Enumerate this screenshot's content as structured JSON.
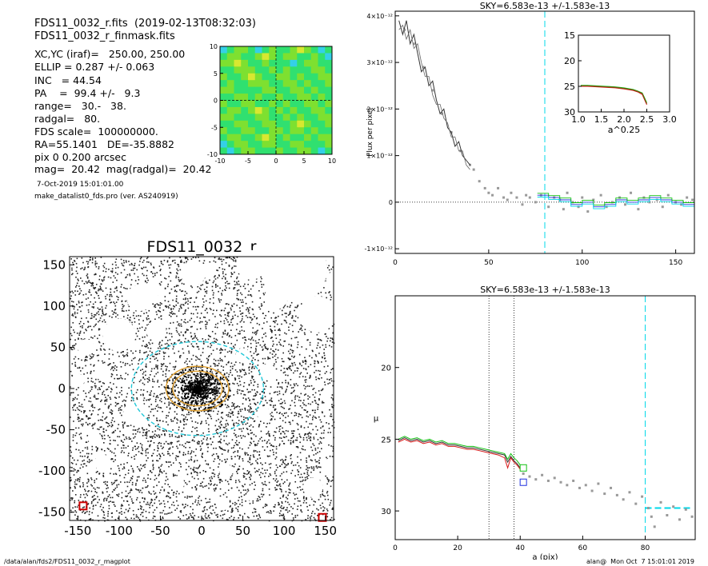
{
  "header": {
    "file_line": "FDS11_0032_r.fits  (2019-02-13T08:32:03)",
    "mask_line": "FDS11_0032_r_finmask.fits"
  },
  "params": [
    "XC,YC (iraf)=   250.00, 250.00",
    "ELLIP = 0.287 +/- 0.063",
    "INC   = 44.54",
    "PA    =  99.4 +/-   9.3",
    "range=   30.-   38.",
    "radgal=   80.",
    "FDS scale=  100000000.",
    "RA=55.1401   DE=-35.8882",
    "pix 0 0.200 arcsec",
    "mag=  20.42  mag(radgal)=  20.42"
  ],
  "date_line": " 7-Oct-2019 15:01:01.00",
  "program_line": "make_datalist0_fds.pro (ver. AS240919)",
  "footer": {
    "path": "/data/alan/fds2/FDS11_0032_r_magplot",
    "user_stamp": "alan@  Mon Oct  7 15:01:01 2019"
  },
  "colors": {
    "sky_line": "#00d8e8",
    "profile_dark": "#333333",
    "profile_red": "#d81818",
    "profile_green": "#10c010",
    "profile_blue": "#2030e0",
    "inset_brown": "#7a4a10",
    "points": "#999999"
  },
  "chart_data": [
    {
      "type": "heatmap",
      "id": "contour_map",
      "xlim": [
        -10,
        10
      ],
      "ylim": [
        -10,
        10
      ],
      "xticks": [
        -10,
        -5,
        0,
        5,
        10
      ],
      "yticks": [
        -10,
        -5,
        0,
        5,
        10
      ],
      "xtick_labels": [
        "-10",
        "-5",
        "0",
        "5",
        "10"
      ],
      "ytick_labels": [
        "-10",
        "-5",
        "0",
        "5",
        "10"
      ],
      "palette": [
        "#1d3fc8",
        "#2f8cf0",
        "#34d0e8",
        "#30e070",
        "#7ee030",
        "#d8e830"
      ],
      "cells": [
        [
          2,
          3,
          4,
          4,
          3,
          2,
          3,
          4,
          3,
          3,
          4,
          5,
          4,
          3,
          2,
          3
        ],
        [
          3,
          4,
          4,
          3,
          3,
          4,
          5,
          4,
          3,
          4,
          4,
          3,
          3,
          4,
          3,
          2
        ],
        [
          4,
          4,
          5,
          4,
          3,
          3,
          4,
          3,
          3,
          3,
          2,
          3,
          4,
          4,
          3,
          3
        ],
        [
          3,
          3,
          4,
          4,
          4,
          3,
          3,
          4,
          3,
          4,
          3,
          3,
          3,
          4,
          4,
          3
        ],
        [
          4,
          3,
          3,
          4,
          5,
          4,
          3,
          3,
          4,
          4,
          3,
          4,
          3,
          3,
          4,
          4
        ],
        [
          3,
          4,
          3,
          3,
          4,
          4,
          4,
          3,
          3,
          4,
          4,
          3,
          4,
          3,
          3,
          4
        ],
        [
          4,
          4,
          3,
          3,
          3,
          3,
          4,
          4,
          3,
          3,
          4,
          4,
          3,
          4,
          3,
          3
        ],
        [
          3,
          3,
          4,
          4,
          3,
          4,
          3,
          3,
          4,
          3,
          3,
          4,
          4,
          3,
          4,
          3
        ],
        [
          4,
          3,
          3,
          4,
          4,
          3,
          3,
          4,
          3,
          4,
          3,
          3,
          4,
          4,
          3,
          4
        ],
        [
          3,
          4,
          4,
          3,
          4,
          5,
          4,
          3,
          4,
          3,
          4,
          3,
          3,
          4,
          4,
          3
        ],
        [
          4,
          4,
          3,
          3,
          3,
          4,
          4,
          3,
          3,
          4,
          3,
          4,
          3,
          3,
          4,
          4
        ],
        [
          3,
          3,
          4,
          4,
          3,
          3,
          4,
          4,
          3,
          3,
          4,
          5,
          4,
          3,
          3,
          4
        ],
        [
          4,
          3,
          3,
          4,
          4,
          3,
          3,
          4,
          4,
          3,
          4,
          4,
          3,
          4,
          3,
          3
        ],
        [
          3,
          4,
          4,
          3,
          3,
          4,
          5,
          4,
          3,
          4,
          3,
          3,
          4,
          3,
          4,
          4
        ],
        [
          2,
          3,
          4,
          4,
          3,
          3,
          4,
          4,
          3,
          3,
          4,
          4,
          3,
          3,
          3,
          4
        ],
        [
          3,
          2,
          3,
          4,
          4,
          3,
          3,
          3,
          4,
          3,
          3,
          4,
          4,
          3,
          2,
          3
        ]
      ]
    },
    {
      "type": "scatter",
      "id": "galaxy_image",
      "title": "FDS11_0032_r",
      "xlim": [
        -160,
        160
      ],
      "ylim": [
        -160,
        160
      ],
      "xticks": [
        -150,
        -100,
        -50,
        0,
        50,
        100,
        150
      ],
      "yticks": [
        -150,
        -100,
        -50,
        0,
        50,
        100,
        150
      ],
      "xtick_labels": [
        "-150",
        "-100",
        "-50",
        "0",
        "50",
        "100",
        "150"
      ],
      "ytick_labels": [
        "-150",
        "-100",
        "-50",
        "0",
        "50",
        "100",
        "150"
      ],
      "ellipses": [
        {
          "cx": -5,
          "cy": 0,
          "a": 80,
          "b": 57,
          "pa": 99.4,
          "color": "cyan",
          "dashed": true
        },
        {
          "cx": -5,
          "cy": 0,
          "a": 38,
          "b": 27,
          "pa": 99.4,
          "color": "orange"
        },
        {
          "cx": -5,
          "cy": 0,
          "a": 30,
          "b": 21,
          "pa": 99.4,
          "color": "orange"
        }
      ],
      "masks": [
        {
          "x": -100,
          "y": 65,
          "r": 20
        },
        {
          "x": -75,
          "y": 110,
          "r": 16
        },
        {
          "x": -55,
          "y": 70,
          "r": 12
        },
        {
          "x": -120,
          "y": 20,
          "r": 10
        },
        {
          "x": -140,
          "y": 50,
          "r": 10
        },
        {
          "x": -80,
          "y": -30,
          "r": 15
        },
        {
          "x": -120,
          "y": -90,
          "r": 10
        },
        {
          "x": -150,
          "y": 10,
          "r": 8
        },
        {
          "x": -10,
          "y": 140,
          "r": 15
        },
        {
          "x": 50,
          "y": 40,
          "r": 9
        },
        {
          "x": 80,
          "y": 20,
          "r": 10
        },
        {
          "x": 112,
          "y": 145,
          "r": 40
        },
        {
          "x": 140,
          "y": 90,
          "r": 22
        },
        {
          "x": 90,
          "y": 110,
          "r": 14
        },
        {
          "x": 60,
          "y": 150,
          "r": 18
        },
        {
          "x": 160,
          "y": 40,
          "r": 10
        },
        {
          "x": 150,
          "y": -10,
          "r": 6
        },
        {
          "x": 135,
          "y": -120,
          "r": 12
        },
        {
          "x": 155,
          "y": -95,
          "r": 10
        },
        {
          "x": 75,
          "y": -30,
          "r": 8
        },
        {
          "x": 30,
          "y": -100,
          "r": 8
        },
        {
          "x": 25,
          "y": -140,
          "r": 8
        },
        {
          "x": -30,
          "y": -115,
          "r": 9
        },
        {
          "x": -130,
          "y": -60,
          "r": 8
        },
        {
          "x": 100,
          "y": -75,
          "r": 7
        },
        {
          "x": 60,
          "y": -130,
          "r": 6
        },
        {
          "x": -60,
          "y": 120,
          "r": 10
        },
        {
          "x": 165,
          "y": 130,
          "r": 14
        }
      ]
    },
    {
      "type": "line",
      "id": "flux_profile",
      "title": "SKY=6.583e-13 +/-1.583e-13",
      "ylabel": "Flux per pixel",
      "xlim": [
        0,
        160
      ],
      "ylim": [
        -1.1e-12,
        4.1e-12
      ],
      "xticks": [
        0,
        50,
        100,
        150
      ],
      "xtick_labels": [
        "0",
        "50",
        "100",
        "150"
      ],
      "yticks": [
        -1e-12,
        0,
        1e-12,
        2e-12,
        3e-12,
        4e-12
      ],
      "ytick_labels": [
        "-1×10⁻¹²",
        "0",
        "1×10⁻¹²",
        "2×10⁻¹²",
        "3×10⁻¹²",
        "4×10⁻¹²"
      ],
      "sky_x": 80,
      "inner_line": {
        "x": [
          2,
          4,
          6,
          8,
          10,
          12,
          14,
          16,
          18,
          20,
          22,
          24,
          26,
          28,
          30,
          32,
          34,
          36,
          38,
          40
        ],
        "y": [
          3.9e-12,
          3.6e-12,
          3.9e-12,
          3.4e-12,
          3.6e-12,
          3.2e-12,
          2.8e-12,
          2.9e-12,
          2.5e-12,
          2.6e-12,
          2.2e-12,
          1.9e-12,
          2e-12,
          1.6e-12,
          1.5e-12,
          1.2e-12,
          1.3e-12,
          1e-12,
          9e-13,
          8e-13
        ]
      },
      "inner_line2": {
        "x": [
          2,
          4,
          6,
          8,
          10,
          12,
          14,
          16,
          18,
          20,
          22,
          24,
          26,
          28,
          30,
          32,
          34,
          36,
          38,
          40
        ],
        "y": [
          3.7e-12,
          3.8e-12,
          3.5e-12,
          3.7e-12,
          3.3e-12,
          3.4e-12,
          3e-12,
          2.7e-12,
          2.7e-12,
          2.3e-12,
          2.1e-12,
          2.1e-12,
          1.8e-12,
          1.7e-12,
          1.4e-12,
          1.4e-12,
          1.1e-12,
          1.1e-12,
          8e-13,
          7e-13
        ]
      },
      "points": {
        "x": [
          5,
          10,
          15,
          20,
          25,
          30,
          35,
          40,
          42,
          45,
          48,
          50,
          52,
          55,
          58,
          60,
          62,
          65,
          68,
          70,
          72,
          75,
          78,
          82,
          85,
          88,
          90,
          92,
          95,
          98,
          100,
          103,
          106,
          110,
          113,
          116,
          120,
          123,
          126,
          130,
          133,
          136,
          140,
          143,
          146,
          150,
          153,
          156,
          159
        ],
        "y": [
          3.7e-12,
          3.4e-12,
          2.9e-12,
          2.4e-12,
          1.9e-12,
          1.5e-12,
          1.1e-12,
          8e-13,
          7e-13,
          4.5e-13,
          3e-13,
          2e-13,
          1.5e-13,
          3e-13,
          1e-13,
          5e-14,
          2e-13,
          1e-13,
          -5e-14,
          1.5e-13,
          1e-13,
          0.0,
          1.5e-13,
          -1e-13,
          1e-13,
          5e-14,
          -1.5e-13,
          2e-13,
          0.0,
          -1e-13,
          1e-13,
          -2e-13,
          5e-14,
          1.5e-13,
          -1e-13,
          0.0,
          1e-13,
          -5e-14,
          2e-13,
          -1.5e-13,
          1e-13,
          0.0,
          5e-14,
          -1e-13,
          1.5e-13,
          0.0,
          -5e-14,
          1e-13,
          5e-14
        ]
      },
      "steps": {
        "x": [
          76,
          82,
          88,
          94,
          100,
          106,
          112,
          118,
          124,
          130,
          136,
          142,
          148,
          154,
          160
        ],
        "y": [
          1.5e-13,
          1e-13,
          5e-14,
          -5e-14,
          0.0,
          -1e-13,
          -5e-14,
          5e-14,
          0.0,
          5e-14,
          1e-13,
          5e-14,
          0.0,
          -5e-14,
          0.0
        ]
      }
    },
    {
      "type": "line",
      "id": "inset_profile",
      "xlabel": "a^0.25",
      "xlim": [
        1.0,
        3.0
      ],
      "ylim": [
        15,
        30
      ],
      "xticks": [
        1.0,
        1.5,
        2.0,
        2.5,
        3.0
      ],
      "xtick_labels": [
        "1.0",
        "1.5",
        "2.0",
        "2.5",
        "3.0"
      ],
      "yticks": [
        15,
        20,
        25,
        30
      ],
      "ytick_labels": [
        "15",
        "20",
        "25",
        "30"
      ],
      "series": [
        {
          "color": "profile_green",
          "x": [
            1.05,
            1.2,
            1.4,
            1.6,
            1.8,
            2.0,
            2.2,
            2.3,
            2.4,
            2.45,
            2.5
          ],
          "y": [
            24.8,
            24.8,
            24.9,
            25.0,
            25.1,
            25.3,
            25.6,
            25.9,
            26.3,
            27.2,
            28.2
          ]
        },
        {
          "color": "profile_red",
          "x": [
            1.05,
            1.2,
            1.4,
            1.6,
            1.8,
            2.0,
            2.2,
            2.3,
            2.4,
            2.45,
            2.5
          ],
          "y": [
            25.0,
            25.0,
            25.1,
            25.2,
            25.3,
            25.5,
            25.8,
            26.1,
            26.6,
            27.6,
            28.6
          ]
        },
        {
          "color": "inset_brown",
          "x": [
            1.05,
            1.2,
            1.4,
            1.6,
            1.8,
            2.0,
            2.2,
            2.3,
            2.4,
            2.45,
            2.5
          ],
          "y": [
            24.9,
            24.9,
            25.0,
            25.1,
            25.2,
            25.4,
            25.7,
            26.0,
            26.4,
            27.4,
            28.4
          ]
        }
      ]
    },
    {
      "type": "line",
      "id": "mu_profile",
      "title": "SKY=6.583e-13 +/-1.583e-13",
      "xlabel": "a (pix)",
      "ylabel": "μ",
      "xlim": [
        0,
        96
      ],
      "ylim": [
        32,
        15
      ],
      "xticks": [
        0,
        20,
        40,
        60,
        80
      ],
      "xtick_labels": [
        "0",
        "20",
        "40",
        "60",
        "80"
      ],
      "yticks": [
        20,
        25,
        30
      ],
      "ytick_labels": [
        "20",
        "25",
        "30"
      ],
      "vlines_dotted": [
        30,
        38
      ],
      "sky_x": 80,
      "sky_level": 29.8,
      "series": [
        {
          "color": "profile_green",
          "x": [
            1,
            3,
            5,
            7,
            9,
            11,
            13,
            15,
            17,
            19,
            21,
            23,
            25,
            27,
            29,
            31,
            33,
            35,
            36,
            37,
            38,
            39,
            40
          ],
          "y": [
            25.0,
            24.8,
            25.0,
            24.9,
            25.1,
            25.0,
            25.2,
            25.1,
            25.3,
            25.3,
            25.4,
            25.5,
            25.5,
            25.6,
            25.7,
            25.8,
            25.9,
            26.0,
            26.4,
            26.0,
            26.3,
            26.5,
            26.8
          ]
        },
        {
          "color": "profile_dark",
          "x": [
            1,
            3,
            5,
            7,
            9,
            11,
            13,
            15,
            17,
            19,
            21,
            23,
            25,
            27,
            29,
            31,
            33,
            35,
            36,
            37,
            38,
            39,
            40
          ],
          "y": [
            25.1,
            24.9,
            25.1,
            25.0,
            25.2,
            25.1,
            25.3,
            25.2,
            25.4,
            25.4,
            25.5,
            25.6,
            25.6,
            25.7,
            25.8,
            25.9,
            26.0,
            26.1,
            26.6,
            26.2,
            26.5,
            26.7,
            27.0
          ]
        },
        {
          "color": "profile_red",
          "x": [
            1,
            3,
            5,
            7,
            9,
            11,
            13,
            15,
            17,
            19,
            21,
            23,
            25,
            27,
            29,
            31,
            33,
            35,
            36,
            37,
            38,
            39,
            40
          ],
          "y": [
            25.2,
            25.0,
            25.2,
            25.1,
            25.3,
            25.2,
            25.4,
            25.3,
            25.5,
            25.5,
            25.6,
            25.7,
            25.7,
            25.8,
            25.9,
            26.0,
            26.1,
            26.3,
            27.0,
            26.3,
            26.6,
            26.8,
            27.1
          ]
        }
      ],
      "points": {
        "x": [
          41,
          43,
          45,
          47,
          49,
          51,
          53,
          55,
          57,
          59,
          61,
          63,
          65,
          67,
          69,
          71,
          73,
          75,
          77,
          79,
          81,
          82,
          83,
          85,
          87,
          89,
          91,
          93,
          95
        ],
        "y": [
          27.4,
          27.6,
          27.8,
          27.5,
          27.9,
          27.7,
          28.0,
          28.2,
          27.9,
          28.4,
          28.2,
          28.6,
          28.1,
          28.8,
          28.4,
          28.9,
          29.2,
          28.7,
          29.5,
          29.0,
          29.8,
          30.4,
          31.1,
          29.4,
          30.3,
          29.7,
          30.6,
          29.9,
          30.4
        ]
      },
      "boxes": [
        {
          "x": 41,
          "y": 27.0,
          "color": "profile_green"
        },
        {
          "x": 41,
          "y": 28.0,
          "color": "profile_blue"
        }
      ]
    }
  ]
}
